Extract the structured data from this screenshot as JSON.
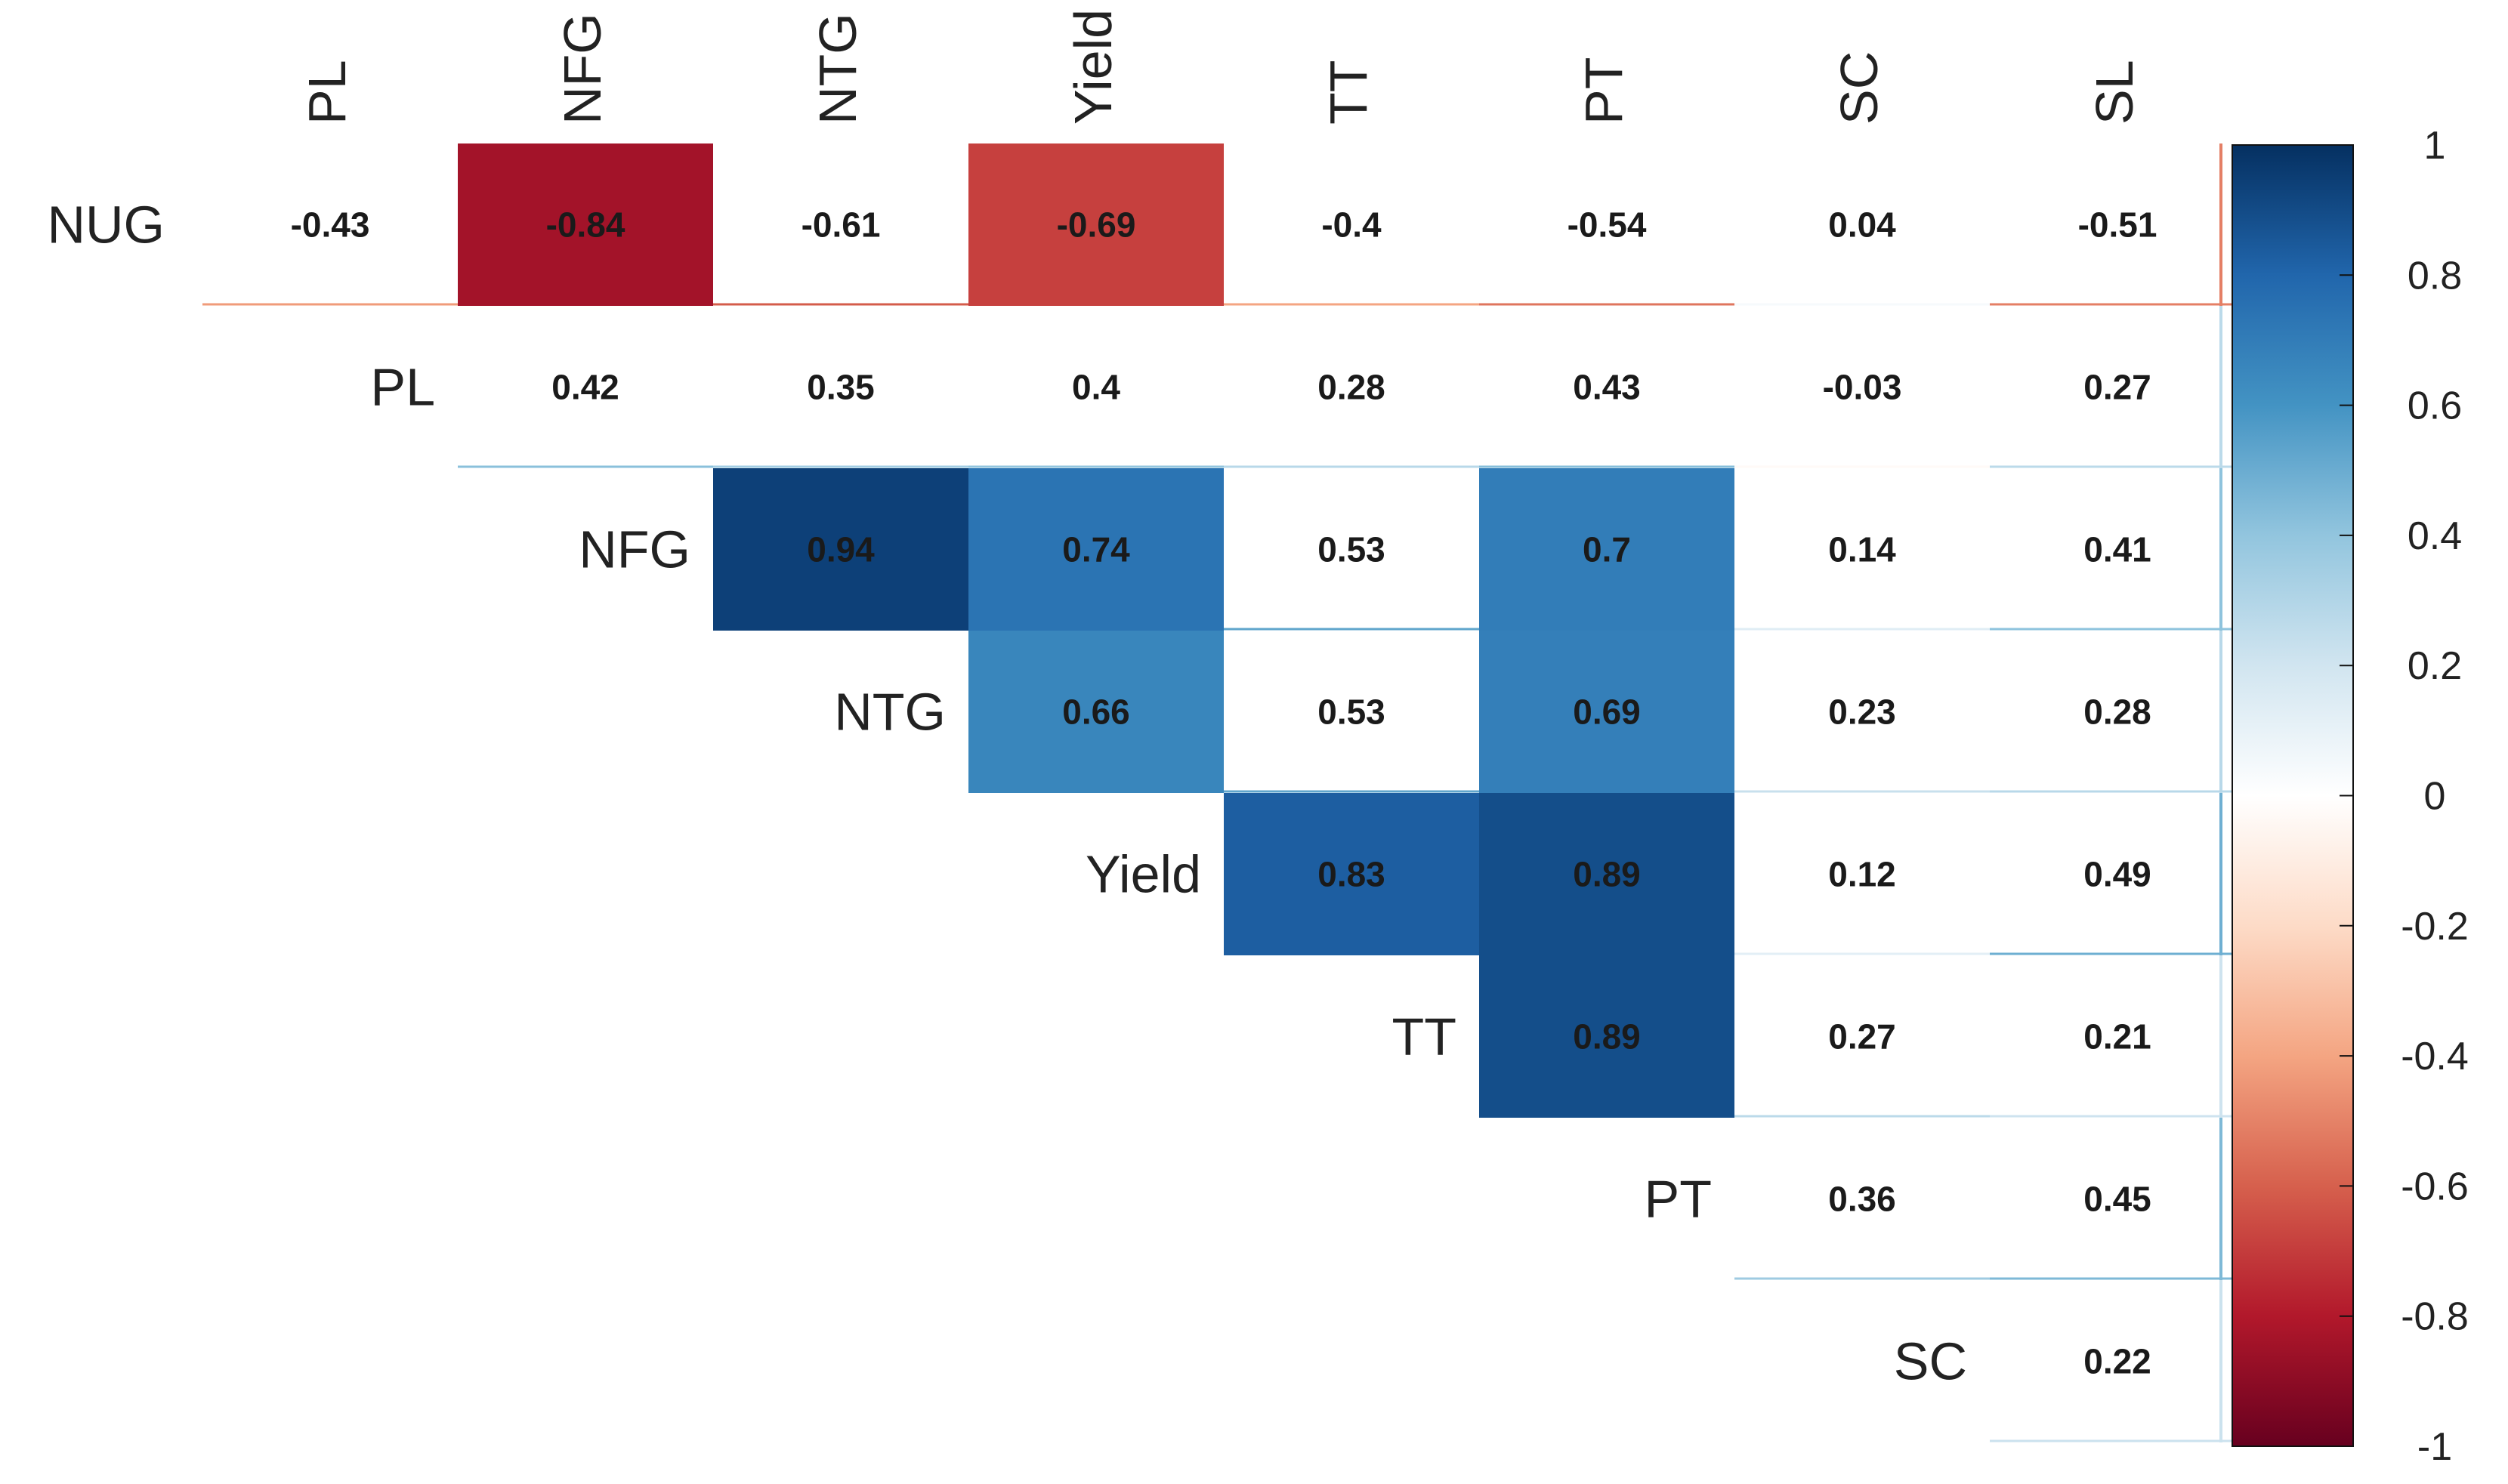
{
  "chart_data": {
    "type": "heatmap",
    "title": "",
    "subtitle": "",
    "xlabel": "",
    "ylabel": "",
    "layout": "upper-triangle correlation matrix with coefficient labels",
    "variables": [
      "NUG",
      "PL",
      "NFG",
      "NTG",
      "Yield",
      "TT",
      "PT",
      "SC",
      "SL"
    ],
    "column_labels": [
      "PL",
      "NFG",
      "NTG",
      "Yield",
      "TT",
      "PT",
      "SC",
      "SL"
    ],
    "row_labels": [
      "NUG",
      "PL",
      "NFG",
      "NTG",
      "Yield",
      "TT",
      "PT",
      "SC"
    ],
    "rows": [
      {
        "row": "NUG",
        "values": [
          -0.43,
          -0.84,
          -0.61,
          -0.69,
          -0.4,
          -0.54,
          0.04,
          -0.51
        ],
        "labels": [
          "-0.43",
          "-0.84",
          "-0.61",
          "-0.69",
          "-0.4",
          "-0.54",
          "0.04",
          "-0.51"
        ]
      },
      {
        "row": "PL",
        "values": [
          0.42,
          0.35,
          0.4,
          0.28,
          0.43,
          -0.03,
          0.27
        ],
        "labels": [
          "0.42",
          "0.35",
          "0.4",
          "0.28",
          "0.43",
          "-0.03",
          "0.27"
        ]
      },
      {
        "row": "NFG",
        "values": [
          0.94,
          0.74,
          0.53,
          0.7,
          0.14,
          0.41
        ],
        "labels": [
          "0.94",
          "0.74",
          "0.53",
          "0.7",
          "0.14",
          "0.41"
        ]
      },
      {
        "row": "NTG",
        "values": [
          0.66,
          0.53,
          0.69,
          0.23,
          0.28
        ],
        "labels": [
          "0.66",
          "0.53",
          "0.69",
          "0.23",
          "0.28"
        ]
      },
      {
        "row": "Yield",
        "values": [
          0.83,
          0.89,
          0.12,
          0.49
        ],
        "labels": [
          "0.83",
          "0.89",
          "0.12",
          "0.49"
        ]
      },
      {
        "row": "TT",
        "values": [
          0.89,
          0.27,
          0.21
        ],
        "labels": [
          "0.89",
          "0.27",
          "0.21"
        ]
      },
      {
        "row": "PT",
        "values": [
          0.36,
          0.45
        ],
        "labels": [
          "0.36",
          "0.45"
        ]
      },
      {
        "row": "SC",
        "values": [
          0.22
        ],
        "labels": [
          "0.22"
        ]
      }
    ],
    "significant_cells": [
      [
        "NUG",
        "NFG"
      ],
      [
        "NUG",
        "Yield"
      ],
      [
        "NFG",
        "NTG"
      ],
      [
        "NFG",
        "Yield"
      ],
      [
        "NFG",
        "PT"
      ],
      [
        "NTG",
        "Yield"
      ],
      [
        "NTG",
        "PT"
      ],
      [
        "Yield",
        "TT"
      ],
      [
        "Yield",
        "PT"
      ],
      [
        "TT",
        "PT"
      ]
    ],
    "colorbar": {
      "range": [
        -1,
        1
      ],
      "ticks": [
        1,
        0.8,
        0.6,
        0.4,
        0.2,
        0,
        -0.2,
        -0.4,
        -0.6,
        -0.8,
        -1
      ],
      "tick_labels": [
        "1",
        "0.8",
        "0.6",
        "0.4",
        "0.2",
        "0",
        "-0.2",
        "-0.4",
        "-0.6",
        "-0.8",
        "-1"
      ],
      "low_color": "#67001f",
      "mid_color": "#ffffff",
      "high_color": "#053061",
      "placement": "right"
    },
    "colors": {
      "scale_stops": [
        {
          "v": -1.0,
          "c": "#67001f"
        },
        {
          "v": -0.8,
          "c": "#b2182b"
        },
        {
          "v": -0.6,
          "c": "#d6604d"
        },
        {
          "v": -0.4,
          "c": "#f4a582"
        },
        {
          "v": -0.2,
          "c": "#fddbc7"
        },
        {
          "v": 0.0,
          "c": "#ffffff"
        },
        {
          "v": 0.2,
          "c": "#d1e5f0"
        },
        {
          "v": 0.4,
          "c": "#92c5de"
        },
        {
          "v": 0.6,
          "c": "#4393c3"
        },
        {
          "v": 0.8,
          "c": "#2166ac"
        },
        {
          "v": 1.0,
          "c": "#053061"
        }
      ]
    }
  }
}
